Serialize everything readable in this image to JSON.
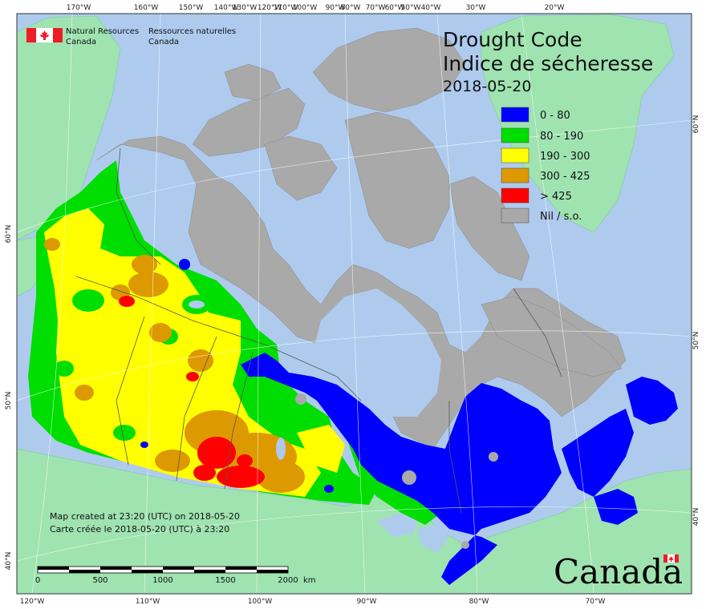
{
  "title": {
    "line1": "Drought Code",
    "line2": "Indice de sécheresse",
    "date": "2018-05-20"
  },
  "agency": {
    "en_line1": "Natural Resources",
    "en_line2": "Canada",
    "fr_line1": "Ressources naturelles",
    "fr_line2": "Canada"
  },
  "legend": [
    {
      "label": "0 - 80",
      "color": "#0000ff"
    },
    {
      "label": "80 - 190",
      "color": "#00dd00"
    },
    {
      "label": "190 - 300",
      "color": "#ffff00"
    },
    {
      "label": "300 - 425",
      "color": "#dd9900"
    },
    {
      "label": "> 425",
      "color": "#ff0000"
    },
    {
      "label": "Nil / s.o.",
      "color": "#a9a9a9"
    }
  ],
  "credits": {
    "en": "Map created at 23:20 (UTC) on 2018-05-20",
    "fr": "Carte créée le 2018-05-20 (UTC) à 23:20"
  },
  "scale_bar": {
    "labels": [
      "0",
      "500",
      "1000",
      "1500",
      "2000"
    ],
    "unit": "km"
  },
  "wordmark": "Canada",
  "top_ticks": [
    "170°W",
    "160°W",
    "150°W",
    "140°W",
    "130°W",
    "120°W",
    "110°W",
    "100°W",
    "90°W",
    "80°W",
    "70°W",
    "60°W",
    "50°W",
    "40°W",
    "30°W",
    "20°W"
  ],
  "bottom_ticks": [
    "120°W",
    "110°W",
    "100°W",
    "90°W",
    "80°W",
    "70°W"
  ],
  "left_ticks": [
    "60°N",
    "50°N",
    "40°N"
  ],
  "right_ticks": [
    "60°N",
    "50°N",
    "40°N"
  ]
}
